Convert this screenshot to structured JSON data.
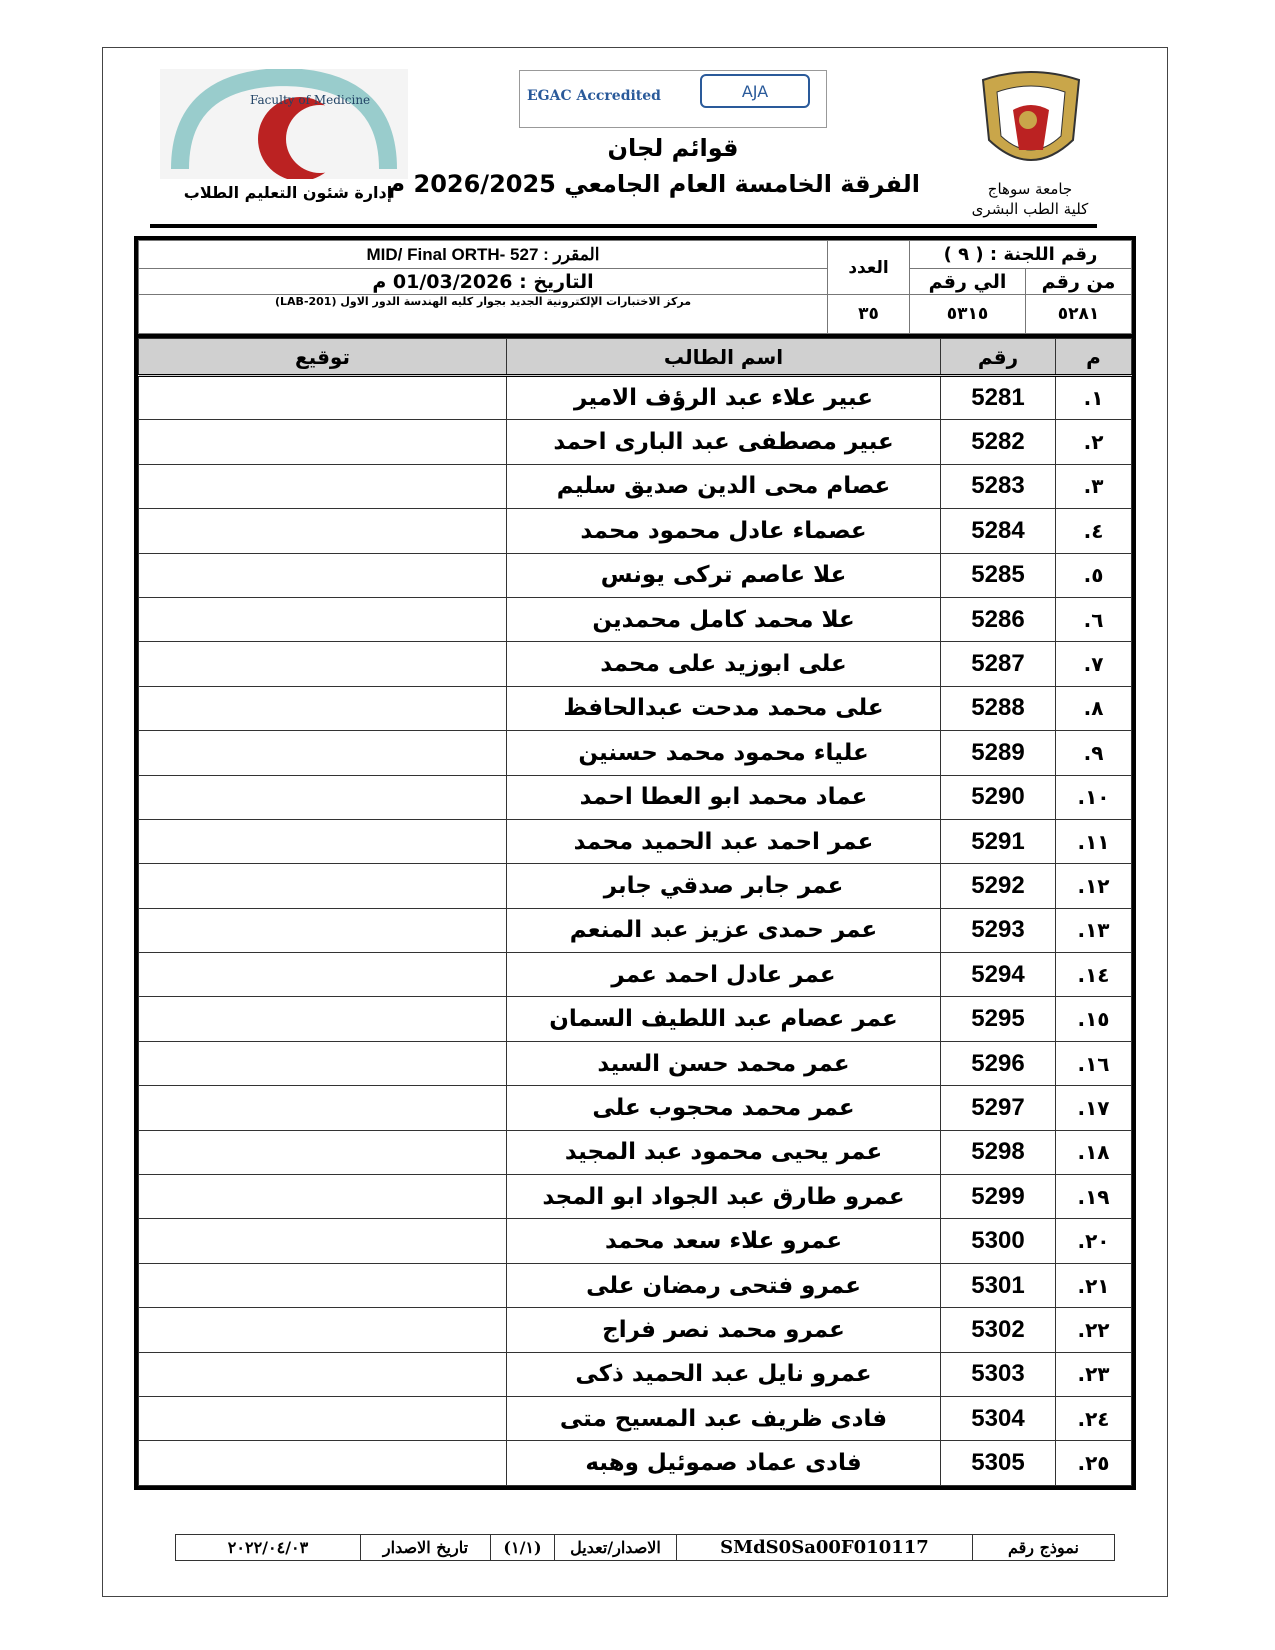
{
  "header": {
    "right_org": [
      "جامعة سوهاج",
      "كلية الطب البشرى"
    ],
    "left_org": "إدارة شئون التعليم الطلاب",
    "title": "قوائم لجان",
    "subtitle": "الفرقة الخامسة العام الجامعي 2026/2025 م",
    "left_logo_text": "Faculty of Medicine",
    "cert_logos": [
      "EGAC Accredited",
      "AJA"
    ]
  },
  "info": {
    "course": "المقرر :  MID/ Final ORTH- 527",
    "date": "التاريخ : 01/03/2026 م",
    "location": "مركز الاختبارات الإلكترونية الجديد بجوار كليه الهندسة الدور الاول (LAB-201)",
    "count_label": "العدد",
    "count": "٣٥",
    "committee": "رقم اللجنة : ( ٩ )",
    "from_label": "من رقم",
    "from": "٥٢٨١",
    "to_label": "الي رقم",
    "to": "٥٣١٥"
  },
  "table": {
    "headers": [
      "م",
      "رقم",
      "اسم الطالب",
      "توقيع"
    ],
    "rows": [
      [
        "١.",
        "5281",
        "عبير علاء عبد الرؤف الامير"
      ],
      [
        "٢.",
        "5282",
        "عبير مصطفى عبد البارى احمد"
      ],
      [
        "٣.",
        "5283",
        "عصام محى الدين صديق سليم"
      ],
      [
        "٤.",
        "5284",
        "عصماء عادل محمود محمد"
      ],
      [
        "٥.",
        "5285",
        "علا عاصم تركى يونس"
      ],
      [
        "٦.",
        "5286",
        "علا محمد كامل محمدين"
      ],
      [
        "٧.",
        "5287",
        "على ابوزيد على محمد"
      ],
      [
        "٨.",
        "5288",
        "على محمد مدحت عبدالحافظ"
      ],
      [
        "٩.",
        "5289",
        "علياء محمود محمد حسنين"
      ],
      [
        "١٠.",
        "5290",
        "عماد محمد ابو العطا احمد"
      ],
      [
        "١١.",
        "5291",
        "عمر احمد عبد الحميد محمد"
      ],
      [
        "١٢.",
        "5292",
        "عمر جابر صدقي جابر"
      ],
      [
        "١٣.",
        "5293",
        "عمر حمدى عزيز عبد المنعم"
      ],
      [
        "١٤.",
        "5294",
        "عمر عادل احمد عمر"
      ],
      [
        "١٥.",
        "5295",
        "عمر عصام عبد اللطيف السمان"
      ],
      [
        "١٦.",
        "5296",
        "عمر محمد حسن السيد"
      ],
      [
        "١٧.",
        "5297",
        "عمر محمد محجوب على"
      ],
      [
        "١٨.",
        "5298",
        "عمر يحيى محمود عبد المجيد"
      ],
      [
        "١٩.",
        "5299",
        "عمرو طارق عبد الجواد ابو المجد"
      ],
      [
        "٢٠.",
        "5300",
        "عمرو علاء سعد محمد"
      ],
      [
        "٢١.",
        "5301",
        "عمرو فتحى رمضان على"
      ],
      [
        "٢٢.",
        "5302",
        "عمرو محمد نصر فراج"
      ],
      [
        "٢٣.",
        "5303",
        "عمرو نايل عبد الحميد ذكى"
      ],
      [
        "٢٤.",
        "5304",
        "فادى ظريف عبد المسيح متى"
      ],
      [
        "٢٥.",
        "5305",
        "فادى عماد صموئيل وهبه"
      ]
    ]
  },
  "footer": {
    "form_label": "نموذج رقم",
    "form_no": "SMdS0Sa00F010117",
    "version_label": "الاصدار/تعديل",
    "version": "(١/١)",
    "issue_label": "تاريخ الاصدار",
    "issue_date": "٢٠٢٢/٠٤/٠٣"
  }
}
